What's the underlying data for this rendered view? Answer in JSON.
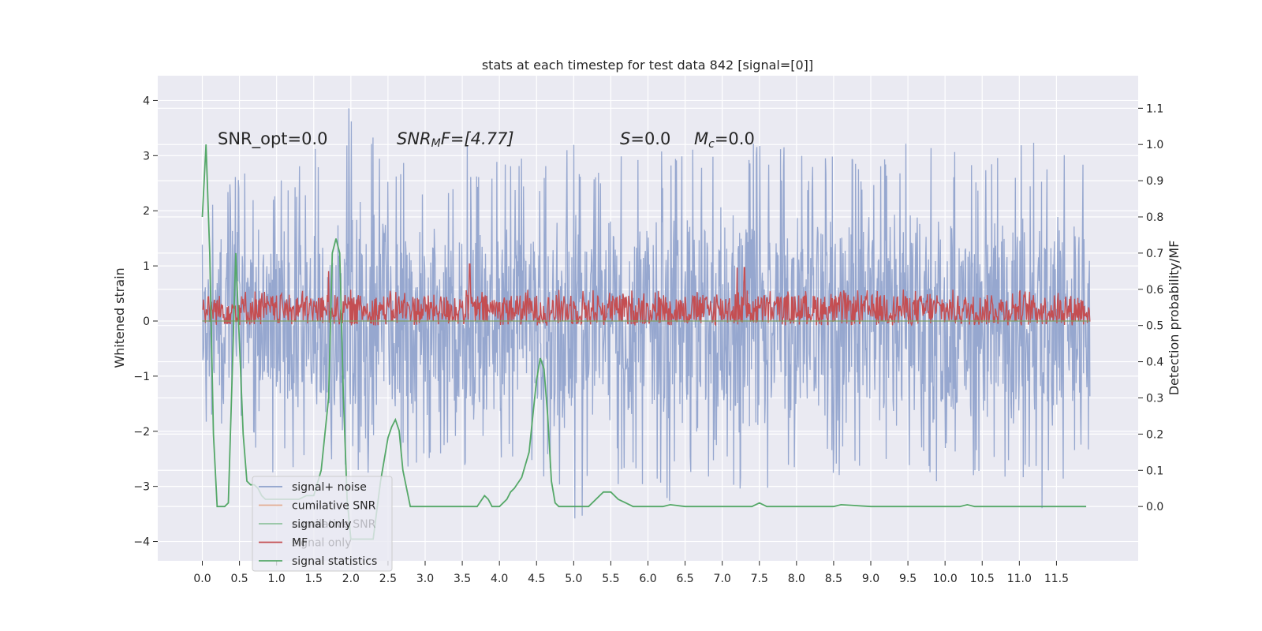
{
  "chart_data": {
    "type": "line",
    "title": "stats at each timestep for test data 842 [signal=[0]]",
    "ylabel": "Whitened strain",
    "y2label": "Detection probability/MF",
    "xlim": [
      -0.6,
      12.6
    ],
    "ylim": [
      -4.35,
      4.45
    ],
    "y2lim": [
      -0.15,
      1.19
    ],
    "x_ticks": [
      0.0,
      0.5,
      1.0,
      1.5,
      2.0,
      2.5,
      3.0,
      3.5,
      4.0,
      4.5,
      5.0,
      5.5,
      6.0,
      6.5,
      7.0,
      7.5,
      8.0,
      8.5,
      9.0,
      9.5,
      10.0,
      10.5,
      11.0,
      11.5
    ],
    "x_tick_labels": [
      "0.0",
      "0.5",
      "1.0",
      "1.5",
      "2.0",
      "2.5",
      "3.0",
      "3.5",
      "4.0",
      "4.5",
      "5.0",
      "5.5",
      "6.0",
      "6.5",
      "7.0",
      "7.5",
      "8.0",
      "8.5",
      "9.0",
      "9.5",
      "10.0",
      "10.5",
      "11.0",
      "11.5"
    ],
    "y_ticks": [
      -4,
      -3,
      -2,
      -1,
      0,
      1,
      2,
      3,
      4
    ],
    "y_tick_labels": [
      "−4",
      "−3",
      "−2",
      "−1",
      "0",
      "1",
      "2",
      "3",
      "4"
    ],
    "y2_ticks": [
      0.0,
      0.1,
      0.2,
      0.3,
      0.4,
      0.5,
      0.6,
      0.7,
      0.8,
      0.9,
      1.0,
      1.1
    ],
    "y2_tick_labels": [
      "0.0",
      "0.1",
      "0.2",
      "0.3",
      "0.4",
      "0.5",
      "0.6",
      "0.7",
      "0.8",
      "0.9",
      "1.0",
      "1.1"
    ],
    "grid": true,
    "legend_location": "lower left",
    "annotations": [
      "SNR_opt=0.0",
      "SNR",
      "M",
      "F=[4.77]",
      "S",
      "=0.0",
      "M",
      "c",
      "=0.0"
    ],
    "series": [
      {
        "name": "signal+ noise",
        "axis": "left",
        "color": "#8da0cb",
        "description_range": "dense noise between about -3.6 and 4.1 over x 0.0 to 11.95",
        "x_range": [
          0.0,
          11.95
        ],
        "envelope_hi": [
          2.3,
          2.9,
          2.6,
          3.1,
          4.1,
          3.0,
          2.8,
          3.2,
          3.1,
          3.0,
          3.4,
          3.1,
          3.0,
          3.2,
          3.7,
          3.3,
          3.2,
          3.0,
          3.2,
          3.3,
          3.1,
          3.0,
          3.2,
          3.3,
          3.0
        ],
        "envelope_lo": [
          -1.8,
          -2.4,
          -3.0,
          -2.9,
          -2.8,
          -2.7,
          -2.6,
          -2.7,
          -2.5,
          -2.8,
          -3.9,
          -2.9,
          -3.3,
          -3.3,
          -2.8,
          -3.3,
          -3.5,
          -2.8,
          -3.0,
          -3.0,
          -2.9,
          -2.8,
          -3.0,
          -3.6,
          -2.6
        ]
      },
      {
        "name": "cumilative SNR",
        "axis": "left",
        "color": "#dd8452",
        "x": [
          0.0,
          11.95
        ],
        "y": [
          0.0,
          0.0
        ]
      },
      {
        "name": "signal only",
        "axis": "left",
        "color": "#55a868",
        "x": [
          0.0,
          11.95
        ],
        "y": [
          0.0,
          0.0
        ]
      },
      {
        "name": "MF",
        "axis": "right",
        "color": "#c44e52",
        "description_range": "noisy trace mostly between 0.50 and 0.62, peaks near 0.67",
        "x_range": [
          0.0,
          11.95
        ],
        "baseline": 0.5,
        "typical_high": 0.6,
        "peaks": [
          [
            1.7,
            0.65
          ],
          [
            3.6,
            0.67
          ],
          [
            7.2,
            0.66
          ],
          [
            7.3,
            0.66
          ]
        ]
      },
      {
        "name": "signal statistics",
        "axis": "right",
        "color": "#55a868",
        "x": [
          0.0,
          0.05,
          0.1,
          0.15,
          0.2,
          0.25,
          0.3,
          0.35,
          0.4,
          0.45,
          0.5,
          0.55,
          0.6,
          0.65,
          0.7,
          0.75,
          0.8,
          0.85,
          0.9,
          1.0,
          1.1,
          1.2,
          1.3,
          1.4,
          1.5,
          1.6,
          1.7,
          1.75,
          1.8,
          1.85,
          1.9,
          1.95,
          2.0,
          2.1,
          2.2,
          2.3,
          2.4,
          2.5,
          2.55,
          2.6,
          2.65,
          2.7,
          2.8,
          2.9,
          3.0,
          3.2,
          3.4,
          3.6,
          3.7,
          3.8,
          3.85,
          3.9,
          4.0,
          4.1,
          4.15,
          4.2,
          4.3,
          4.4,
          4.45,
          4.5,
          4.55,
          4.6,
          4.65,
          4.7,
          4.75,
          4.8,
          4.9,
          5.0,
          5.2,
          5.4,
          5.5,
          5.6,
          5.7,
          5.8,
          6.0,
          6.2,
          6.3,
          6.5,
          7.0,
          7.4,
          7.5,
          7.6,
          7.7,
          8.0,
          8.5,
          8.6,
          9.0,
          9.5,
          10.0,
          10.2,
          10.3,
          10.4,
          10.5,
          11.0,
          11.5,
          11.9
        ],
        "y": [
          0.8,
          1.0,
          0.7,
          0.2,
          0.0,
          0.0,
          0.0,
          0.01,
          0.35,
          0.7,
          0.45,
          0.2,
          0.07,
          0.06,
          0.06,
          0.05,
          0.03,
          0.02,
          0.02,
          0.02,
          0.02,
          0.02,
          0.02,
          0.03,
          0.03,
          0.1,
          0.3,
          0.7,
          0.74,
          0.7,
          0.3,
          0.02,
          -0.09,
          -0.09,
          -0.09,
          -0.09,
          0.07,
          0.19,
          0.22,
          0.24,
          0.21,
          0.1,
          0.0,
          0.0,
          0.0,
          0.0,
          0.0,
          0.0,
          0.0,
          0.03,
          0.02,
          0.0,
          0.0,
          0.02,
          0.04,
          0.05,
          0.08,
          0.15,
          0.25,
          0.35,
          0.41,
          0.38,
          0.25,
          0.07,
          0.01,
          0.0,
          0.0,
          0.0,
          0.0,
          0.04,
          0.04,
          0.02,
          0.01,
          0.0,
          0.0,
          0.0,
          0.005,
          0.0,
          0.0,
          0.0,
          0.01,
          0.0,
          0.0,
          0.0,
          0.0,
          0.005,
          0.0,
          0.0,
          0.0,
          0.0,
          0.005,
          0.0,
          0.0,
          0.0,
          0.0,
          0.0
        ]
      }
    ]
  },
  "legend": {
    "items": [
      {
        "label": "signal+ noise",
        "color": "#8da0cb",
        "alpha": 1
      },
      {
        "label": "cumilative SNR",
        "color": "#dd8452",
        "alpha": 0.6
      },
      {
        "label": "signal only",
        "color": "#55a868",
        "alpha": 0.6
      },
      {
        "label": "MF",
        "color": "#c44e52",
        "alpha": 1
      },
      {
        "label": "signal statistics",
        "color": "#55a868",
        "alpha": 1
      }
    ],
    "ghost_items": [
      "cumilative SNR",
      "signal only"
    ]
  },
  "colors": {
    "axes_bg": "#eaeaf2",
    "grid": "#ffffff",
    "text": "#262626"
  }
}
